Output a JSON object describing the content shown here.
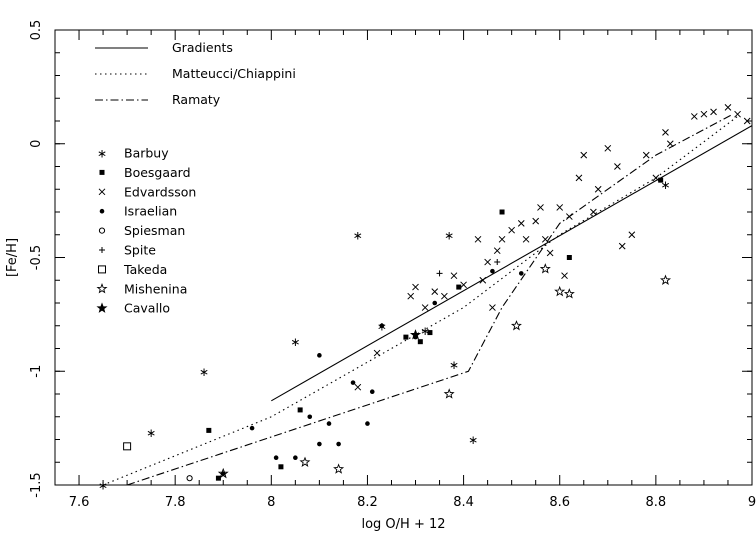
{
  "chart_data": {
    "type": "scatter",
    "xlabel": "log O/H + 12",
    "ylabel": "[Fe/H]",
    "xlim": [
      7.55,
      9.0
    ],
    "ylim": [
      -1.5,
      0.5
    ],
    "xticks": [
      7.6,
      7.8,
      8,
      8.2,
      8.4,
      8.6,
      8.8,
      9
    ],
    "yticks": [
      -1.5,
      -1,
      -0.5,
      0,
      0.5
    ],
    "xtick_labels": [
      "7.6",
      "7.8",
      "8",
      "8.2",
      "8.4",
      "8.6",
      "8.8",
      "9"
    ],
    "ytick_labels": [
      "-1.5",
      "-1",
      "-0.5",
      "0",
      "0.5"
    ],
    "grid": false,
    "line_legend_placement": "top-left",
    "lines": [
      {
        "name": "Gradients",
        "style": "solid",
        "x": [
          8.0,
          9.0
        ],
        "y": [
          -1.13,
          0.08
        ]
      },
      {
        "name": "Matteucci/Chiappini",
        "style": "dotted",
        "x": [
          7.65,
          8.0,
          8.4,
          8.6,
          8.8,
          8.97
        ],
        "y": [
          -1.5,
          -1.2,
          -0.72,
          -0.4,
          -0.15,
          0.12
        ]
      },
      {
        "name": "Ramaty",
        "style": "dashdot",
        "x": [
          7.7,
          8.41,
          8.48,
          8.6,
          8.8,
          8.96
        ],
        "y": [
          -1.5,
          -1.0,
          -0.72,
          -0.35,
          -0.05,
          0.13
        ]
      }
    ],
    "series_legend_placement": "upper-left",
    "series": [
      {
        "name": "Barbuy",
        "marker": "asterisk",
        "points": [
          [
            7.65,
            -1.5
          ],
          [
            7.75,
            -1.27
          ],
          [
            7.86,
            -1.0
          ],
          [
            8.05,
            -0.87
          ],
          [
            8.18,
            -0.4
          ],
          [
            8.37,
            -0.4
          ],
          [
            8.38,
            -0.97
          ],
          [
            8.42,
            -1.3
          ],
          [
            8.82,
            -0.18
          ],
          [
            8.32,
            -0.82
          ],
          [
            8.23,
            -0.8
          ]
        ]
      },
      {
        "name": "Boesgaard",
        "marker": "square-filled",
        "points": [
          [
            7.87,
            -1.26
          ],
          [
            7.89,
            -1.47
          ],
          [
            8.02,
            -1.42
          ],
          [
            8.06,
            -1.17
          ],
          [
            8.28,
            -0.85
          ],
          [
            8.31,
            -0.87
          ],
          [
            8.33,
            -0.83
          ],
          [
            8.39,
            -0.63
          ],
          [
            8.48,
            -0.3
          ],
          [
            8.62,
            -0.5
          ],
          [
            8.81,
            -0.16
          ]
        ]
      },
      {
        "name": "Edvardsson",
        "marker": "x",
        "points": [
          [
            8.18,
            -1.07
          ],
          [
            8.22,
            -0.92
          ],
          [
            8.29,
            -0.67
          ],
          [
            8.3,
            -0.63
          ],
          [
            8.32,
            -0.72
          ],
          [
            8.34,
            -0.65
          ],
          [
            8.36,
            -0.67
          ],
          [
            8.38,
            -0.58
          ],
          [
            8.4,
            -0.62
          ],
          [
            8.43,
            -0.42
          ],
          [
            8.44,
            -0.6
          ],
          [
            8.45,
            -0.52
          ],
          [
            8.46,
            -0.72
          ],
          [
            8.47,
            -0.47
          ],
          [
            8.48,
            -0.42
          ],
          [
            8.5,
            -0.38
          ],
          [
            8.52,
            -0.35
          ],
          [
            8.53,
            -0.42
          ],
          [
            8.55,
            -0.34
          ],
          [
            8.56,
            -0.28
          ],
          [
            8.57,
            -0.42
          ],
          [
            8.58,
            -0.48
          ],
          [
            8.6,
            -0.28
          ],
          [
            8.61,
            -0.58
          ],
          [
            8.62,
            -0.32
          ],
          [
            8.64,
            -0.15
          ],
          [
            8.65,
            -0.05
          ],
          [
            8.67,
            -0.3
          ],
          [
            8.68,
            -0.2
          ],
          [
            8.7,
            -0.02
          ],
          [
            8.72,
            -0.1
          ],
          [
            8.73,
            -0.45
          ],
          [
            8.75,
            -0.4
          ],
          [
            8.78,
            -0.05
          ],
          [
            8.8,
            -0.15
          ],
          [
            8.82,
            0.05
          ],
          [
            8.83,
            0.0
          ],
          [
            8.88,
            0.12
          ],
          [
            8.9,
            0.13
          ],
          [
            8.92,
            0.14
          ],
          [
            8.95,
            0.16
          ],
          [
            8.97,
            0.13
          ],
          [
            8.99,
            0.1
          ]
        ]
      },
      {
        "name": "Israelian",
        "marker": "dot-filled",
        "points": [
          [
            7.9,
            -1.45
          ],
          [
            7.96,
            -1.25
          ],
          [
            8.01,
            -1.38
          ],
          [
            8.05,
            -1.38
          ],
          [
            8.08,
            -1.2
          ],
          [
            8.1,
            -1.32
          ],
          [
            8.1,
            -0.93
          ],
          [
            8.12,
            -1.23
          ],
          [
            8.14,
            -1.32
          ],
          [
            8.17,
            -1.05
          ],
          [
            8.2,
            -1.23
          ],
          [
            8.21,
            -1.09
          ],
          [
            8.23,
            -0.8
          ],
          [
            8.3,
            -0.85
          ],
          [
            8.34,
            -0.7
          ],
          [
            8.46,
            -0.56
          ],
          [
            8.52,
            -0.57
          ]
        ]
      },
      {
        "name": "Spiesman",
        "marker": "circle-open",
        "points": [
          [
            7.83,
            -1.47
          ]
        ]
      },
      {
        "name": "Spite",
        "marker": "plus",
        "points": [
          [
            8.35,
            -0.57
          ],
          [
            8.47,
            -0.52
          ]
        ]
      },
      {
        "name": "Takeda",
        "marker": "square-open",
        "points": [
          [
            7.7,
            -1.33
          ]
        ]
      },
      {
        "name": "Mishenina",
        "marker": "star-open",
        "points": [
          [
            7.9,
            -1.45
          ],
          [
            8.07,
            -1.4
          ],
          [
            8.14,
            -1.43
          ],
          [
            8.37,
            -1.1
          ],
          [
            8.51,
            -0.8
          ],
          [
            8.57,
            -0.55
          ],
          [
            8.6,
            -0.65
          ],
          [
            8.62,
            -0.66
          ],
          [
            8.82,
            -0.6
          ]
        ]
      },
      {
        "name": "Cavallo",
        "marker": "star-filled",
        "points": [
          [
            8.3,
            -0.84
          ]
        ]
      }
    ]
  }
}
